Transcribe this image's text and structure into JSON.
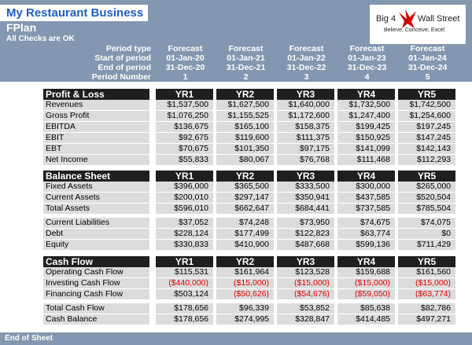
{
  "header": {
    "title": "My Restaurant Business",
    "subtitle": "FPlan",
    "status": "All Checks are OK",
    "logo": {
      "brand_left": "Big 4",
      "brand_right": "Wall Street",
      "tagline": "Believe, Conceive, Excel"
    }
  },
  "periods": {
    "labels": [
      "Period type",
      "Start of period",
      "End of period",
      "Period Number"
    ],
    "columns": [
      [
        "Forecast",
        "01-Jan-20",
        "31-Dec-20",
        "1"
      ],
      [
        "Forecast",
        "01-Jan-21",
        "31-Dec-21",
        "2"
      ],
      [
        "Forecast",
        "01-Jan-22",
        "31-Dec-22",
        "3"
      ],
      [
        "Forecast",
        "01-Jan-23",
        "31-Dec-23",
        "4"
      ],
      [
        "Forecast",
        "01-Jan-24",
        "31-Dec-24",
        "5"
      ]
    ]
  },
  "sections": [
    {
      "title": "Profit & Loss",
      "columns": [
        "YR1",
        "YR2",
        "YR3",
        "YR4",
        "YR5"
      ],
      "groups": [
        [
          {
            "label": "Revenues",
            "values": [
              "$1,537,500",
              "$1,627,500",
              "$1,640,000",
              "$1,732,500",
              "$1,742,500"
            ]
          },
          {
            "label": "Gross Profit",
            "values": [
              "$1,076,250",
              "$1,155,525",
              "$1,172,600",
              "$1,247,400",
              "$1,254,600"
            ]
          },
          {
            "label": "EBITDA",
            "values": [
              "$136,675",
              "$165,100",
              "$158,375",
              "$199,425",
              "$197,245"
            ]
          },
          {
            "label": "EBIT",
            "values": [
              "$92,675",
              "$119,600",
              "$111,375",
              "$150,925",
              "$147,245"
            ]
          },
          {
            "label": "EBT",
            "values": [
              "$70,675",
              "$101,350",
              "$97,175",
              "$141,099",
              "$142,143"
            ]
          },
          {
            "label": "Net Income",
            "values": [
              "$55,833",
              "$80,067",
              "$76,768",
              "$111,468",
              "$112,293"
            ]
          }
        ]
      ]
    },
    {
      "title": "Balance Sheet",
      "columns": [
        "YR1",
        "YR2",
        "YR3",
        "YR4",
        "YR5"
      ],
      "groups": [
        [
          {
            "label": "Fixed Assets",
            "values": [
              "$396,000",
              "$365,500",
              "$333,500",
              "$300,000",
              "$265,000"
            ]
          },
          {
            "label": "Current Assets",
            "values": [
              "$200,010",
              "$297,147",
              "$350,941",
              "$437,585",
              "$520,504"
            ]
          },
          {
            "label": "Total Assets",
            "values": [
              "$596,010",
              "$662,647",
              "$684,441",
              "$737,585",
              "$785,504"
            ]
          }
        ],
        [
          {
            "label": "Current Liabilities",
            "values": [
              "$37,052",
              "$74,248",
              "$73,950",
              "$74,675",
              "$74,075"
            ]
          },
          {
            "label": "Debt",
            "values": [
              "$228,124",
              "$177,499",
              "$122,823",
              "$63,774",
              "$0"
            ]
          },
          {
            "label": "Equity",
            "values": [
              "$330,833",
              "$410,900",
              "$487,668",
              "$599,136",
              "$711,429"
            ]
          }
        ]
      ]
    },
    {
      "title": "Cash Flow",
      "columns": [
        "YR1",
        "YR2",
        "YR3",
        "YR4",
        "YR5"
      ],
      "groups": [
        [
          {
            "label": "Operating Cash Flow",
            "values": [
              "$115,531",
              "$161,964",
              "$123,528",
              "$159,688",
              "$161,560"
            ]
          },
          {
            "label": "Investing Cash Flow",
            "values": [
              "($440,000)",
              "($15,000)",
              "($15,000)",
              "($15,000)",
              "($15,000)"
            ]
          },
          {
            "label": "Financing Cash Flow",
            "values": [
              "$503,124",
              "($50,626)",
              "($54,676)",
              "($59,050)",
              "($63,774)"
            ]
          }
        ],
        [
          {
            "label": "Total Cash Flow",
            "values": [
              "$178,656",
              "$96,339",
              "$53,852",
              "$85,638",
              "$82,786"
            ]
          },
          {
            "label": "Cash Balance",
            "values": [
              "$178,656",
              "$274,995",
              "$328,847",
              "$414,485",
              "$497,271"
            ]
          }
        ]
      ]
    }
  ],
  "footer": "End of Sheet"
}
